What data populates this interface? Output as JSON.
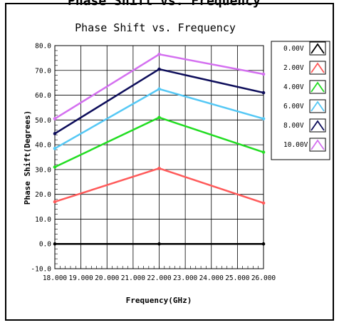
{
  "header_fragment": "Phase Shift vs. Frequency",
  "chart_data": {
    "type": "line",
    "title": "Phase Shift vs. Frequency",
    "xlabel": "Frequency(GHz)",
    "ylabel": "Phase Shift(Degrees)",
    "xlim": [
      18,
      26
    ],
    "ylim": [
      -10,
      80
    ],
    "x_ticks": [
      "18.000",
      "19.000",
      "20.000",
      "21.000",
      "22.000",
      "23.000",
      "24.000",
      "25.000",
      "26.000"
    ],
    "y_ticks": [
      "80.0",
      "70.0",
      "60.0",
      "50.0",
      "40.0",
      "30.0",
      "20.0",
      "10.0",
      "0.0",
      "-10.0"
    ],
    "x_tick_values": [
      18,
      19,
      20,
      21,
      22,
      23,
      24,
      25,
      26
    ],
    "y_tick_values": [
      80,
      70,
      60,
      50,
      40,
      30,
      20,
      10,
      0,
      -10
    ],
    "x": [
      18,
      22,
      26
    ],
    "grid": true,
    "legend_position": "right",
    "series": [
      {
        "name": "0.00V",
        "color": "#000000",
        "values": [
          0.0,
          0.0,
          0.0
        ]
      },
      {
        "name": "2.00V",
        "color": "#ff5a5a",
        "values": [
          17.0,
          30.5,
          16.5
        ]
      },
      {
        "name": "4.00V",
        "color": "#22dd22",
        "values": [
          31.0,
          51.0,
          37.0
        ]
      },
      {
        "name": "6.00V",
        "color": "#55c8f5",
        "values": [
          38.5,
          62.5,
          50.5
        ]
      },
      {
        "name": "8.00V",
        "color": "#0d0d5a",
        "values": [
          44.5,
          70.5,
          61.0
        ]
      },
      {
        "name": "10.00V",
        "color": "#d470f0",
        "values": [
          50.5,
          76.5,
          68.5
        ]
      }
    ]
  }
}
